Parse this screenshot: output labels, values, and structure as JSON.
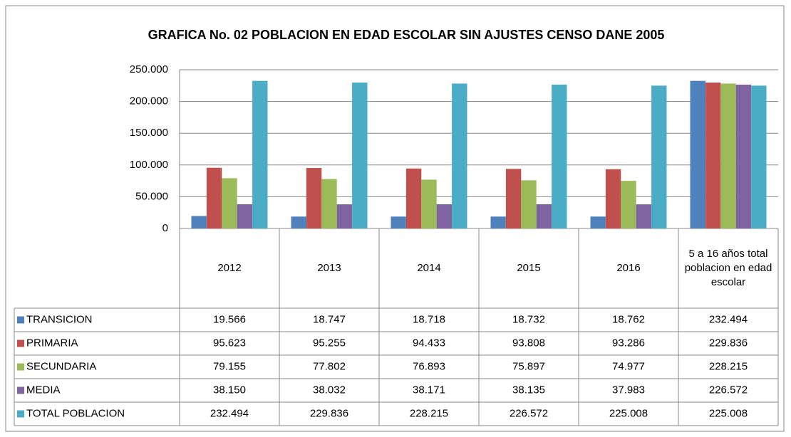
{
  "chart_data": {
    "type": "bar",
    "title": "GRAFICA  No. 02 POBLACION EN EDAD ESCOLAR SIN AJUSTES CENSO DANE 2005",
    "categories": [
      "2012",
      "2013",
      "2014",
      "2015",
      "2016",
      "5 a 16 años total poblacion en edad escolar"
    ],
    "series": [
      {
        "name": "TRANSICION",
        "color": "#4f81bd",
        "values": [
          19566,
          18747,
          18718,
          18732,
          18762,
          232494
        ],
        "value_labels": [
          "19.566",
          "18.747",
          "18.718",
          "18.732",
          "18.762",
          "232.494"
        ]
      },
      {
        "name": "PRIMARIA",
        "color": "#c0504d",
        "values": [
          95623,
          95255,
          94433,
          93808,
          93286,
          229836
        ],
        "value_labels": [
          "95.623",
          "95.255",
          "94.433",
          "93.808",
          "93.286",
          "229.836"
        ]
      },
      {
        "name": "SECUNDARIA",
        "color": "#9bbb59",
        "values": [
          79155,
          77802,
          76893,
          75897,
          74977,
          228215
        ],
        "value_labels": [
          "79.155",
          "77.802",
          "76.893",
          "75.897",
          "74.977",
          "228.215"
        ]
      },
      {
        "name": "MEDIA",
        "color": "#8064a2",
        "values": [
          38150,
          38032,
          38171,
          38135,
          37983,
          226572
        ],
        "value_labels": [
          "38.150",
          "38.032",
          "38.171",
          "38.135",
          "37.983",
          "226.572"
        ]
      },
      {
        "name": "TOTAL POBLACION",
        "color": "#4bacc6",
        "values": [
          232494,
          229836,
          228215,
          226572,
          225008,
          225008
        ],
        "value_labels": [
          "232.494",
          "229.836",
          "228.215",
          "226.572",
          "225.008",
          "225.008"
        ]
      }
    ],
    "ylim": [
      0,
      250000
    ],
    "yticks": [
      0,
      {
        "value": 50000,
        "label": "50.000"
      },
      {
        "value": 100000,
        "label": "100.000"
      },
      {
        "value": 150000,
        "label": "150.000"
      },
      {
        "value": 200000,
        "label": "200.000"
      },
      {
        "value": 250000,
        "label": "250.000"
      }
    ],
    "grid": true
  }
}
